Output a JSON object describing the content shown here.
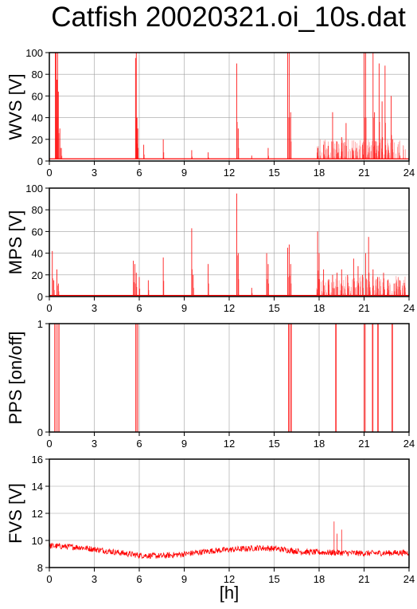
{
  "page": {
    "title": "Catfish 20020321.oi_10s.dat",
    "x_unit": "[h]"
  },
  "colors": {
    "series": "#ff0000",
    "grid": "#a0a0a0",
    "axes": "#000000",
    "background": "#ffffff"
  },
  "chart_data": [
    {
      "type": "line",
      "ylabel": "WVS [V]",
      "xlim": [
        0,
        24
      ],
      "ylim": [
        0,
        100
      ],
      "xticks": [
        "0",
        "3",
        "6",
        "9",
        "12",
        "15",
        "18",
        "21",
        "24"
      ],
      "yticks": [
        "0",
        "20",
        "40",
        "60",
        "80",
        "100"
      ],
      "grid": true,
      "baseline": 2,
      "spikes": [
        [
          0.4,
          100
        ],
        [
          0.45,
          100
        ],
        [
          0.5,
          75
        ],
        [
          0.55,
          100
        ],
        [
          0.6,
          64
        ],
        [
          0.7,
          30
        ],
        [
          0.8,
          12
        ],
        [
          5.75,
          95
        ],
        [
          5.8,
          100
        ],
        [
          5.85,
          40
        ],
        [
          5.9,
          30
        ],
        [
          6.3,
          15
        ],
        [
          7.6,
          20
        ],
        [
          9.5,
          10
        ],
        [
          10.6,
          8
        ],
        [
          12.5,
          90
        ],
        [
          12.6,
          30
        ],
        [
          13.5,
          5
        ],
        [
          14.6,
          12
        ],
        [
          15.9,
          100
        ],
        [
          16.0,
          100
        ],
        [
          16.1,
          45
        ],
        [
          17.9,
          12
        ],
        [
          18.3,
          15
        ],
        [
          18.6,
          14
        ],
        [
          18.9,
          45
        ],
        [
          19.2,
          18
        ],
        [
          19.5,
          22
        ],
        [
          19.8,
          35
        ],
        [
          20.2,
          12
        ],
        [
          20.5,
          12
        ],
        [
          20.9,
          15
        ],
        [
          21.0,
          100
        ],
        [
          21.1,
          100
        ],
        [
          21.6,
          100
        ],
        [
          21.7,
          45
        ],
        [
          22.0,
          90
        ],
        [
          22.2,
          55
        ],
        [
          22.4,
          88
        ],
        [
          22.8,
          60
        ],
        [
          22.9,
          20
        ],
        [
          23.4,
          5
        ]
      ],
      "series": [
        {
          "values": []
        }
      ]
    },
    {
      "type": "line",
      "ylabel": "MPS [V]",
      "xlim": [
        0,
        24
      ],
      "ylim": [
        0,
        100
      ],
      "xticks": [
        "0",
        "3",
        "6",
        "9",
        "12",
        "15",
        "18",
        "21",
        "24"
      ],
      "yticks": [
        "0",
        "20",
        "40",
        "60",
        "80",
        "100"
      ],
      "grid": true,
      "baseline": 1,
      "spikes": [
        [
          0.2,
          42
        ],
        [
          0.3,
          15
        ],
        [
          0.5,
          25
        ],
        [
          0.6,
          12
        ],
        [
          5.6,
          33
        ],
        [
          5.7,
          30
        ],
        [
          5.8,
          22
        ],
        [
          6.0,
          18
        ],
        [
          6.6,
          15
        ],
        [
          7.6,
          36
        ],
        [
          9.5,
          63
        ],
        [
          9.6,
          20
        ],
        [
          10.6,
          30
        ],
        [
          12.5,
          95
        ],
        [
          12.6,
          40
        ],
        [
          13.5,
          8
        ],
        [
          14.5,
          40
        ],
        [
          14.6,
          30
        ],
        [
          15.9,
          45
        ],
        [
          16.0,
          48
        ],
        [
          16.1,
          30
        ],
        [
          17.9,
          60
        ],
        [
          18.0,
          40
        ],
        [
          18.3,
          25
        ],
        [
          18.6,
          15
        ],
        [
          18.9,
          20
        ],
        [
          19.2,
          22
        ],
        [
          19.5,
          25
        ],
        [
          19.9,
          20
        ],
        [
          20.3,
          35
        ],
        [
          20.6,
          28
        ],
        [
          20.9,
          20
        ],
        [
          21.1,
          40
        ],
        [
          21.3,
          55
        ],
        [
          21.6,
          25
        ],
        [
          21.9,
          18
        ],
        [
          22.3,
          22
        ],
        [
          22.6,
          15
        ],
        [
          23.0,
          12
        ],
        [
          23.4,
          15
        ],
        [
          23.7,
          10
        ]
      ],
      "series": [
        {
          "values": []
        }
      ]
    },
    {
      "type": "line",
      "ylabel": "PPS [on/off]",
      "xlim": [
        0,
        24
      ],
      "ylim": [
        0,
        1
      ],
      "xticks": [
        "0",
        "3",
        "6",
        "9",
        "12",
        "15",
        "18",
        "21",
        "24"
      ],
      "yticks": [
        "0",
        "1"
      ],
      "grid": true,
      "baseline": 0,
      "on_intervals": [
        [
          0.35,
          0.65
        ],
        [
          5.75,
          5.9
        ],
        [
          15.95,
          16.0
        ],
        [
          16.1,
          16.15
        ],
        [
          19.1,
          19.15
        ],
        [
          21.0,
          21.08
        ],
        [
          21.55,
          21.6
        ],
        [
          21.9,
          21.95
        ],
        [
          22.85,
          22.9
        ]
      ],
      "series": [
        {
          "values": []
        }
      ]
    },
    {
      "type": "line",
      "ylabel": "FVS [V]",
      "xlim": [
        0,
        24
      ],
      "ylim": [
        8,
        16
      ],
      "xticks": [
        "0",
        "3",
        "6",
        "9",
        "12",
        "15",
        "18",
        "21",
        "24"
      ],
      "yticks": [
        "8",
        "10",
        "12",
        "14",
        "16"
      ],
      "grid": true,
      "trend": [
        [
          0,
          9.6
        ],
        [
          2,
          9.5
        ],
        [
          4,
          9.2
        ],
        [
          6,
          8.9
        ],
        [
          7.5,
          8.85
        ],
        [
          9,
          9.0
        ],
        [
          11,
          9.25
        ],
        [
          12.5,
          9.35
        ],
        [
          14,
          9.45
        ],
        [
          15,
          9.4
        ],
        [
          17,
          9.15
        ],
        [
          19,
          9.1
        ],
        [
          21,
          9.05
        ],
        [
          24,
          9.1
        ]
      ],
      "noise": 0.22,
      "spikes": [
        [
          19.0,
          11.4
        ],
        [
          19.5,
          10.8
        ],
        [
          19.2,
          10.5
        ]
      ],
      "series": [
        {
          "values": []
        }
      ]
    }
  ]
}
